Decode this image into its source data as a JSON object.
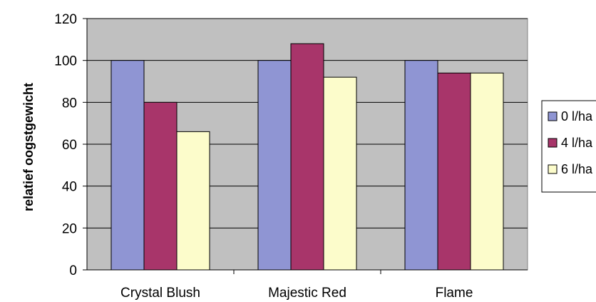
{
  "chart_data": {
    "type": "bar",
    "title": "",
    "xlabel": "",
    "ylabel": "relatief oogstgewicht",
    "categories": [
      "Crystal Blush",
      "Majestic Red",
      "Flame"
    ],
    "series": [
      {
        "name": "0 l/ha",
        "color": "#8f95d3",
        "values": [
          100,
          100,
          100
        ]
      },
      {
        "name": "4 l/ha",
        "color": "#a8356a",
        "values": [
          80,
          108,
          94
        ]
      },
      {
        "name": "6 l/ha",
        "color": "#fcfccb",
        "values": [
          66,
          92,
          94
        ]
      }
    ],
    "ylim": [
      0,
      120
    ],
    "yticks": [
      "0",
      "20",
      "40",
      "60",
      "80",
      "100",
      "120"
    ],
    "grid": true,
    "legend_position": "right",
    "plot_background": "#c0c0c0"
  }
}
